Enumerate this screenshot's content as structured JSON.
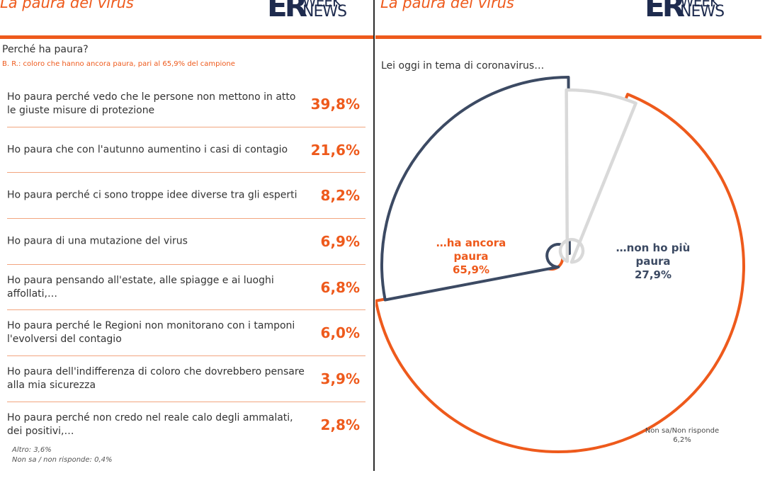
{
  "left": {
    "title": "La paura del virus",
    "question": "Perché ha paura?",
    "base_note": "B. R.: coloro che hanno ancora paura, pari al 65,9% del campione",
    "footnotes": [
      "Altro: 3,6%",
      "Non sa / non risponde: 0,4%"
    ]
  },
  "right": {
    "title": "La paura del virus",
    "subtitle": "Lei oggi in tema di coronavirus…"
  },
  "logo": {
    "mark": "ER",
    "line1": "WEEK",
    "line2": "NEWS"
  },
  "colors": {
    "orange": "#ee5a1c",
    "navy": "#3c4a63",
    "grey": "#d9d9d9",
    "logo": "#1e2b4e"
  },
  "chart_data": [
    {
      "type": "table",
      "categories": [
        "Ho paura perché vedo che le persone non mettono in atto le giuste misure di protezione",
        "Ho paura che con l'autunno aumentino i casi di contagio",
        "Ho paura perché ci sono troppe idee diverse tra gli esperti",
        "Ho paura di una mutazione del virus",
        "Ho paura pensando all'estate, alle spiagge e ai luoghi affollati,…",
        "Ho paura perché le Regioni non monitorano con i tamponi l'evolversi del contagio",
        "Ho paura dell'indifferenza di coloro che dovrebbero pensare alla mia sicurezza",
        "Ho paura perché non credo nel reale calo degli ammalati, dei positivi,…"
      ],
      "values": [
        39.8,
        21.6,
        8.2,
        6.9,
        6.8,
        6.0,
        3.9,
        2.8
      ],
      "value_labels": [
        "39,8%",
        "21,6%",
        "8,2%",
        "6,9%",
        "6,8%",
        "6,0%",
        "3,9%",
        "2,8%"
      ]
    },
    {
      "type": "pie",
      "slices": [
        {
          "label_lines": [
            "…ha ancora",
            "paura"
          ],
          "value": 65.9,
          "value_label": "65,9%",
          "color": "#ee5a1c"
        },
        {
          "label_lines": [
            "…non ho più",
            "paura"
          ],
          "value": 27.9,
          "value_label": "27,9%",
          "color": "#3c4a63"
        },
        {
          "label_lines": [
            "Non sa/Non risponde"
          ],
          "value": 6.2,
          "value_label": "6,2%",
          "color": "#d9d9d9"
        }
      ]
    }
  ]
}
